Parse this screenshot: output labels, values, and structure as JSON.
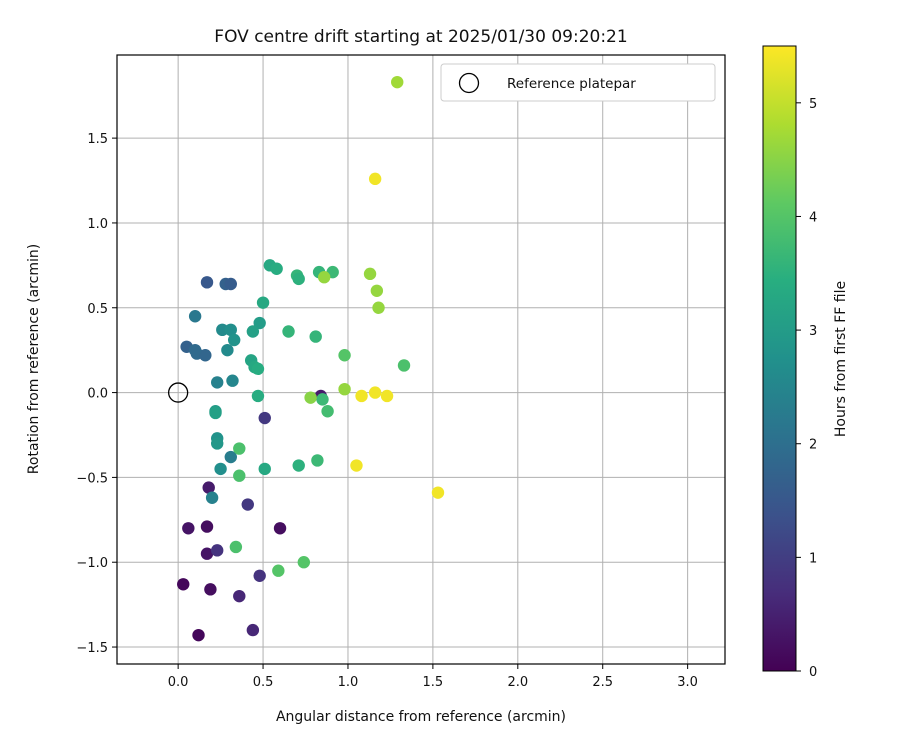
{
  "chart_data": {
    "type": "scatter",
    "title": "FOV centre drift starting at 2025/01/30 09:20:21",
    "xlabel": "Angular distance from reference (arcmin)",
    "ylabel": "Rotation from reference (arcmin)",
    "xlim": [
      -0.36,
      3.22
    ],
    "ylim": [
      -1.6,
      1.99
    ],
    "xticks": [
      0.0,
      0.5,
      1.0,
      1.5,
      2.0,
      2.5,
      3.0
    ],
    "xtick_labels": [
      "0.0",
      "0.5",
      "1.0",
      "1.5",
      "2.0",
      "2.5",
      "3.0"
    ],
    "yticks": [
      -1.5,
      -1.0,
      -0.5,
      0.0,
      0.5,
      1.0,
      1.5
    ],
    "ytick_labels": [
      "−1.5",
      "−1.0",
      "−0.5",
      "0.0",
      "0.5",
      "1.0",
      "1.5"
    ],
    "grid": true,
    "colormap": "viridis",
    "colorbar": {
      "label": "Hours from first FF file",
      "range": [
        0,
        5.5
      ],
      "ticks": [
        0,
        1,
        2,
        3,
        4,
        5
      ],
      "tick_labels": [
        "0",
        "1",
        "2",
        "3",
        "4",
        "5"
      ]
    },
    "legend": {
      "position": "top-right",
      "entries": [
        {
          "label": "Reference platepar",
          "marker": "open-circle"
        }
      ]
    },
    "reference_point": {
      "x": 0.0,
      "y": 0.0
    },
    "points": [
      {
        "x": 0.12,
        "y": -1.43,
        "c": 0.1
      },
      {
        "x": 0.03,
        "y": -1.13,
        "c": 0.1
      },
      {
        "x": 0.19,
        "y": -1.16,
        "c": 0.2
      },
      {
        "x": 0.17,
        "y": -0.95,
        "c": 0.3
      },
      {
        "x": 0.17,
        "y": -0.79,
        "c": 0.2
      },
      {
        "x": 0.06,
        "y": -0.8,
        "c": 0.3
      },
      {
        "x": 0.6,
        "y": -0.8,
        "c": 0.2
      },
      {
        "x": 0.18,
        "y": -0.56,
        "c": 0.4
      },
      {
        "x": 0.44,
        "y": -1.4,
        "c": 0.6
      },
      {
        "x": 0.36,
        "y": -1.2,
        "c": 0.6
      },
      {
        "x": 0.48,
        "y": -1.08,
        "c": 0.8
      },
      {
        "x": 0.23,
        "y": -0.93,
        "c": 0.8
      },
      {
        "x": 0.41,
        "y": -0.66,
        "c": 0.9
      },
      {
        "x": 0.51,
        "y": -0.15,
        "c": 0.9
      },
      {
        "x": 0.84,
        "y": -0.02,
        "c": 0.4
      },
      {
        "x": 0.17,
        "y": 0.65,
        "c": 1.5
      },
      {
        "x": 0.28,
        "y": 0.64,
        "c": 1.7
      },
      {
        "x": 0.31,
        "y": 0.64,
        "c": 1.6
      },
      {
        "x": 0.05,
        "y": 0.27,
        "c": 1.7
      },
      {
        "x": 0.11,
        "y": 0.23,
        "c": 1.9
      },
      {
        "x": 0.16,
        "y": 0.22,
        "c": 1.8
      },
      {
        "x": 0.1,
        "y": 0.25,
        "c": 1.9
      },
      {
        "x": 0.1,
        "y": 0.45,
        "c": 2.2
      },
      {
        "x": 0.23,
        "y": 0.06,
        "c": 2.4
      },
      {
        "x": 0.32,
        "y": 0.07,
        "c": 2.5
      },
      {
        "x": 0.26,
        "y": 0.37,
        "c": 2.6
      },
      {
        "x": 0.31,
        "y": 0.37,
        "c": 2.7
      },
      {
        "x": 0.29,
        "y": 0.25,
        "c": 2.6
      },
      {
        "x": 0.33,
        "y": 0.31,
        "c": 2.8
      },
      {
        "x": 0.31,
        "y": -0.38,
        "c": 2.3
      },
      {
        "x": 0.2,
        "y": -0.62,
        "c": 2.4
      },
      {
        "x": 0.25,
        "y": -0.45,
        "c": 2.7
      },
      {
        "x": 0.23,
        "y": -0.27,
        "c": 2.8
      },
      {
        "x": 0.23,
        "y": -0.3,
        "c": 2.9
      },
      {
        "x": 0.22,
        "y": -0.11,
        "c": 3.0
      },
      {
        "x": 0.22,
        "y": -0.12,
        "c": 3.1
      },
      {
        "x": 0.43,
        "y": 0.19,
        "c": 3.2
      },
      {
        "x": 0.45,
        "y": 0.15,
        "c": 3.3
      },
      {
        "x": 0.47,
        "y": 0.14,
        "c": 3.4
      },
      {
        "x": 0.48,
        "y": 0.41,
        "c": 3.0
      },
      {
        "x": 0.44,
        "y": 0.36,
        "c": 3.1
      },
      {
        "x": 0.5,
        "y": 0.53,
        "c": 3.3
      },
      {
        "x": 0.47,
        "y": -0.02,
        "c": 3.4
      },
      {
        "x": 0.51,
        "y": -0.45,
        "c": 3.3
      },
      {
        "x": 0.54,
        "y": 0.75,
        "c": 3.3
      },
      {
        "x": 0.58,
        "y": 0.73,
        "c": 3.4
      },
      {
        "x": 0.65,
        "y": 0.36,
        "c": 3.6
      },
      {
        "x": 0.7,
        "y": 0.69,
        "c": 3.6
      },
      {
        "x": 0.71,
        "y": 0.67,
        "c": 3.5
      },
      {
        "x": 0.71,
        "y": -0.43,
        "c": 3.5
      },
      {
        "x": 0.81,
        "y": 0.33,
        "c": 3.6
      },
      {
        "x": 0.82,
        "y": -0.4,
        "c": 3.7
      },
      {
        "x": 0.83,
        "y": 0.71,
        "c": 3.6
      },
      {
        "x": 0.85,
        "y": -0.04,
        "c": 3.7
      },
      {
        "x": 0.88,
        "y": -0.11,
        "c": 3.8
      },
      {
        "x": 0.91,
        "y": 0.71,
        "c": 3.7
      },
      {
        "x": 0.36,
        "y": -0.33,
        "c": 3.9
      },
      {
        "x": 0.36,
        "y": -0.49,
        "c": 3.9
      },
      {
        "x": 0.34,
        "y": -0.91,
        "c": 3.9
      },
      {
        "x": 0.59,
        "y": -1.05,
        "c": 4.0
      },
      {
        "x": 0.74,
        "y": -1.0,
        "c": 4.0
      },
      {
        "x": 0.98,
        "y": 0.22,
        "c": 4.0
      },
      {
        "x": 1.33,
        "y": 0.16,
        "c": 3.9
      },
      {
        "x": 0.78,
        "y": -0.03,
        "c": 4.5
      },
      {
        "x": 0.86,
        "y": 0.68,
        "c": 4.6
      },
      {
        "x": 0.98,
        "y": 0.02,
        "c": 4.6
      },
      {
        "x": 1.13,
        "y": 0.7,
        "c": 4.6
      },
      {
        "x": 1.17,
        "y": 0.6,
        "c": 4.6
      },
      {
        "x": 1.18,
        "y": 0.5,
        "c": 4.6
      },
      {
        "x": 1.29,
        "y": 1.83,
        "c": 4.7
      },
      {
        "x": 1.16,
        "y": 1.26,
        "c": 5.4
      },
      {
        "x": 1.05,
        "y": -0.43,
        "c": 5.4
      },
      {
        "x": 1.08,
        "y": -0.02,
        "c": 5.4
      },
      {
        "x": 1.16,
        "y": 0.0,
        "c": 5.4
      },
      {
        "x": 1.23,
        "y": -0.02,
        "c": 5.4
      },
      {
        "x": 1.53,
        "y": -0.59,
        "c": 5.4
      }
    ]
  }
}
